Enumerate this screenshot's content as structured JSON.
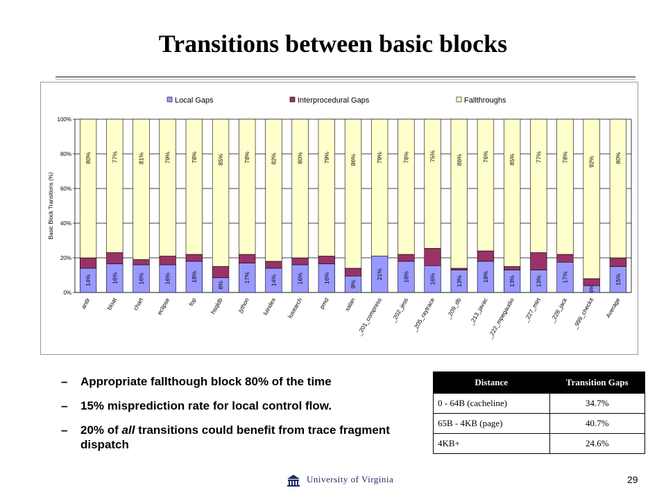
{
  "slide": {
    "title": "Transitions between basic blocks",
    "page_number": "29",
    "logo_text": "University of Virginia"
  },
  "bullets": [
    {
      "dash": "–",
      "text": "Appropriate fallthough block 80% of the time"
    },
    {
      "dash": "–",
      "text": "15% misprediction rate for local control flow."
    },
    {
      "dash": "–",
      "text_before": "20% of ",
      "text_em": "all",
      "text_after": " transitions could benefit from trace fragment dispatch"
    }
  ],
  "table": {
    "headers": [
      "Distance",
      "Transition Gaps"
    ],
    "rows": [
      [
        "0 - 64B (cacheline)",
        "34.7%"
      ],
      [
        "65B - 4KB (page)",
        "40.7%"
      ],
      [
        "4KB+",
        "24.6%"
      ]
    ]
  },
  "chart_data": {
    "type": "bar",
    "stacked": true,
    "ylabel": "Basic Block Transitions (%)",
    "ylim": [
      0,
      100
    ],
    "yticks": [
      "0%",
      "20%",
      "40%",
      "60%",
      "80%",
      "100%"
    ],
    "grid": true,
    "legend_position": "top",
    "categories": [
      "antlr",
      "bloat",
      "chart",
      "eclipse",
      "fop",
      "hsqldb",
      "jython",
      "luindex",
      "lusearch",
      "pmd",
      "xalan",
      "_201_compress",
      "_202_jess",
      "_205_raytrace",
      "_209_db",
      "_213_javac",
      "_222_mpegaudio",
      "_227_mtrt",
      "_228_jack",
      "_999_checkit",
      "Average"
    ],
    "series": [
      {
        "name": "Local Gaps",
        "color": "#9999ff",
        "values": [
          14,
          16.5,
          16,
          16,
          18,
          8.5,
          17,
          14,
          16,
          16.5,
          9.5,
          21,
          18,
          15.5,
          13,
          18,
          13,
          13,
          17.5,
          4,
          15
        ],
        "labels": [
          "14%",
          "16%",
          "16%",
          "16%",
          "18%",
          "8%",
          "17%",
          "14%",
          "16%",
          "16%",
          "9%",
          "21%",
          "18%",
          "16%",
          "13%",
          "18%",
          "13%",
          "13%",
          "17%",
          "4%",
          "15%"
        ]
      },
      {
        "name": "Interprocedural Gaps",
        "color": "#993366",
        "values": [
          6,
          6.5,
          3,
          5,
          4,
          6.5,
          5,
          4,
          4,
          4.5,
          4.5,
          0,
          4,
          10,
          1,
          6,
          2,
          10,
          4.5,
          4,
          5
        ],
        "labels": []
      },
      {
        "name": "Fallthroughs",
        "color": "#ffffcc",
        "values": [
          80,
          77,
          81,
          79,
          78,
          85,
          78,
          82,
          80,
          79,
          86,
          79,
          78,
          74.5,
          86,
          76,
          85,
          77,
          78,
          92,
          80
        ],
        "labels": [
          "80%",
          "77%",
          "81%",
          "79%",
          "78%",
          "85%",
          "78%",
          "82%",
          "80%",
          "79%",
          "86%",
          "79%",
          "78%",
          "75%",
          "86%",
          "76%",
          "85%",
          "77%",
          "78%",
          "92%",
          "80%"
        ]
      }
    ]
  }
}
